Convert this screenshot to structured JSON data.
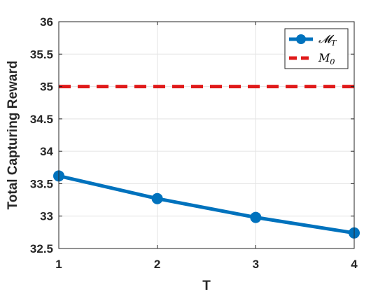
{
  "chart_data": {
    "type": "line",
    "xlabel": "T",
    "ylabel": "Total Capturing Reward",
    "xlim": [
      1,
      4
    ],
    "ylim": [
      32.5,
      36
    ],
    "x_ticks": [
      1,
      2,
      3,
      4
    ],
    "y_ticks": [
      32.5,
      33,
      33.5,
      34,
      34.5,
      35,
      35.5,
      36
    ],
    "x_tick_labels": [
      "1",
      "2",
      "3",
      "4"
    ],
    "y_tick_labels": [
      "32.5",
      "33",
      "33.5",
      "34",
      "34.5",
      "35",
      "35.5",
      "36"
    ],
    "grid": true,
    "legend_position": "top-right",
    "series": [
      {
        "name": "𝓜",
        "name_sub": "T",
        "x": [
          1,
          2,
          3,
          4
        ],
        "values": [
          33.62,
          33.27,
          32.98,
          32.74
        ],
        "color": "#0072BD",
        "style": "solid",
        "marker": "circle"
      },
      {
        "name": "M",
        "name_sub": "0",
        "x": [
          1,
          4
        ],
        "values": [
          35.0,
          35.0
        ],
        "color": "#E01A1A",
        "style": "dashed",
        "marker": "none"
      }
    ]
  }
}
